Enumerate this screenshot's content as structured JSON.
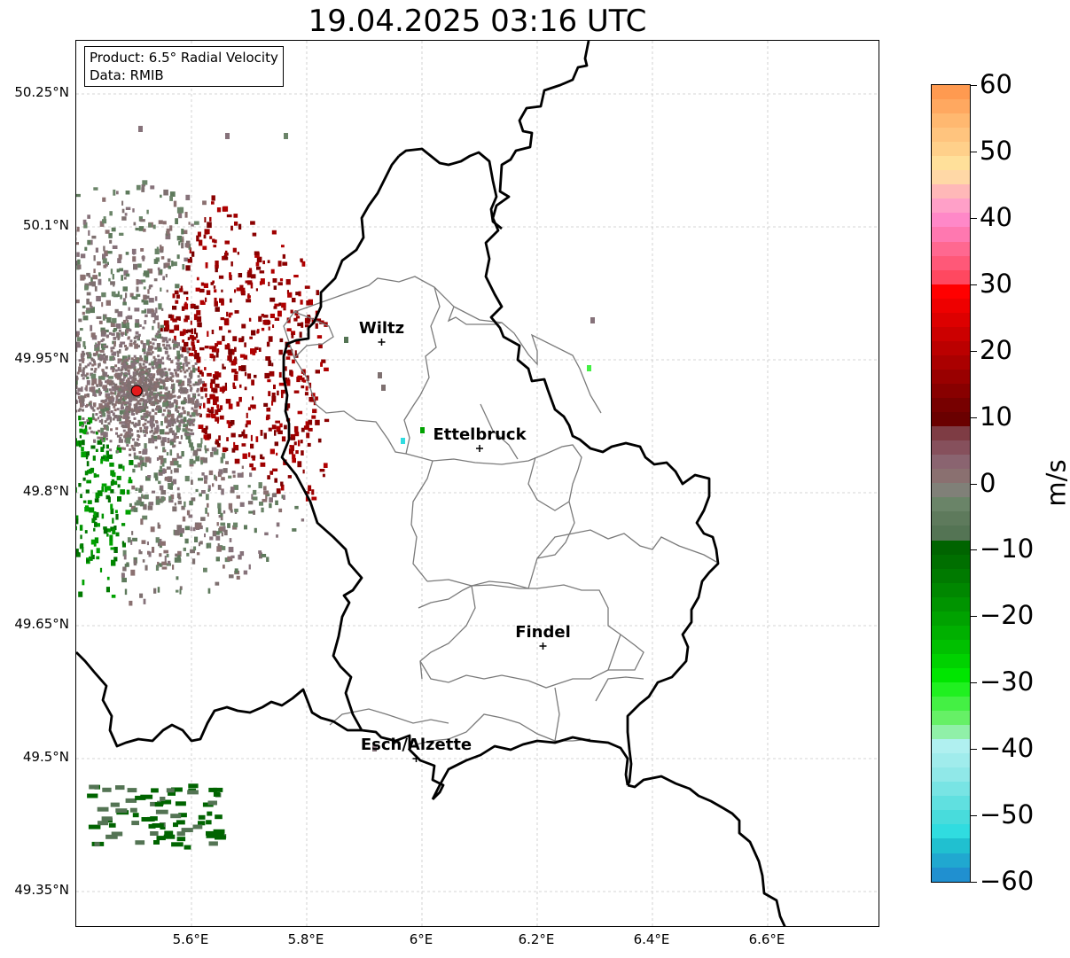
{
  "title": "19.04.2025 03:16 UTC",
  "info_box": {
    "product": "Product: 6.5° Radial Velocity",
    "data_source": "Data: RMIB"
  },
  "cities": [
    {
      "name": "Wiltz",
      "lon": 5.93,
      "lat": 49.97
    },
    {
      "name": "Ettelbruck",
      "lon": 6.1,
      "lat": 49.85
    },
    {
      "name": "Findel",
      "lon": 6.21,
      "lat": 49.627
    },
    {
      "name": "Esch/Alzette",
      "lon": 5.99,
      "lat": 49.5
    }
  ],
  "radar_site": {
    "lon": 5.505,
    "lat": 49.915,
    "color": "#e41a1c"
  },
  "lat_ticks": [
    "50.25°N",
    "50.1°N",
    "49.95°N",
    "49.8°N",
    "49.65°N",
    "49.5°N",
    "49.35°N"
  ],
  "lon_ticks": [
    "5.6°E",
    "5.8°E",
    "6°E",
    "6.2°E",
    "6.4°E",
    "6.6°E"
  ],
  "colorbar": {
    "unit": "m/s",
    "min": -60,
    "max": 60,
    "ticks": [
      "60",
      "50",
      "40",
      "30",
      "20",
      "10",
      "0",
      "−10",
      "−20",
      "−30",
      "−40",
      "−50",
      "−60"
    ],
    "colors_top_to_bottom": [
      "#ff9a50",
      "#ffa860",
      "#ffb870",
      "#ffc47e",
      "#ffd08a",
      "#ffe09a",
      "#ffd8a6",
      "#ffb8b8",
      "#ffa0c8",
      "#ff88c8",
      "#ff78b0",
      "#ff6890",
      "#ff5878",
      "#ff4860",
      "#ff0000",
      "#ee0000",
      "#dd0000",
      "#cc0000",
      "#bb0000",
      "#aa0000",
      "#990000",
      "#880000",
      "#770000",
      "#6a0000",
      "#7e3c44",
      "#86505c",
      "#8a6470",
      "#8a7070",
      "#808078",
      "#6a8468",
      "#5e7a5c",
      "#547454",
      "#006400",
      "#006f00",
      "#007a00",
      "#008700",
      "#009400",
      "#00a200",
      "#00b000",
      "#00c000",
      "#00d200",
      "#00e600",
      "#20f020",
      "#44f044",
      "#66f066",
      "#90f0a8",
      "#b0f0f0",
      "#a0ecec",
      "#90e8e8",
      "#78e4e4",
      "#60e0e0",
      "#48dcdc",
      "#30dce0",
      "#20c0d0",
      "#20a8d0",
      "#2090d0"
    ]
  },
  "colors": {
    "border": "#000000",
    "cantons": "#7a7a7a",
    "grid": "#c8c8c8"
  }
}
